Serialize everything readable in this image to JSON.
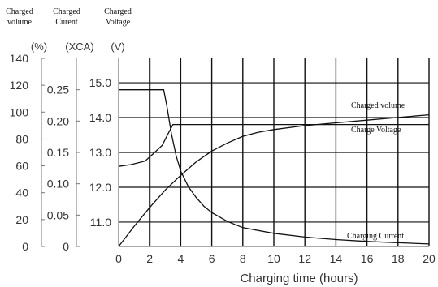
{
  "chart_data": {
    "type": "line",
    "x": [
      0,
      2,
      4,
      6,
      8,
      10,
      12,
      14,
      16,
      18,
      20
    ],
    "xlabel": "Charging time (hours)",
    "xlim": [
      0,
      20
    ],
    "x_ticks": [
      "0",
      "2",
      "4",
      "6",
      "8",
      "10",
      "12",
      "14",
      "16",
      "18",
      "20"
    ],
    "axes": {
      "volume": {
        "header_line1": "Charged",
        "header_line2": "volume",
        "unit": "(%)",
        "ticks": [
          "140",
          "120",
          "100",
          "80",
          "60",
          "40",
          "20",
          "0"
        ],
        "ylim": [
          0,
          140
        ]
      },
      "current": {
        "header_line1": "Charged",
        "header_line2": "Curent",
        "unit": "(XCA)",
        "ticks": [
          "0.25",
          "0.20",
          "0.15",
          "0.10",
          "0.05",
          "0"
        ],
        "ylim": [
          0,
          0.3
        ]
      },
      "voltage": {
        "header_line1": "Charged",
        "header_line2": "Voltage",
        "unit": "(V)",
        "ticks": [
          "15.0",
          "14.0",
          "13.0",
          "12.0",
          "11.0"
        ],
        "ylim": [
          10.3,
          15.7
        ]
      }
    },
    "grid": true,
    "series": [
      {
        "name": "Charged volume",
        "axis": "volume",
        "points": [
          [
            0,
            0
          ],
          [
            1,
            15
          ],
          [
            2,
            29
          ],
          [
            3,
            42
          ],
          [
            4,
            53
          ],
          [
            5,
            63
          ],
          [
            6,
            71
          ],
          [
            7,
            77
          ],
          [
            8,
            82
          ],
          [
            9,
            85
          ],
          [
            10,
            87
          ],
          [
            12,
            90
          ],
          [
            14,
            92
          ],
          [
            16,
            94
          ],
          [
            18,
            96
          ],
          [
            20,
            98
          ]
        ]
      },
      {
        "name": "Charge Voltage",
        "axis": "voltage",
        "points": [
          [
            0,
            12.6
          ],
          [
            0.8,
            12.65
          ],
          [
            1.7,
            12.75
          ],
          [
            2.2,
            12.95
          ],
          [
            2.8,
            13.2
          ],
          [
            3.2,
            13.55
          ],
          [
            3.5,
            13.8
          ],
          [
            20,
            13.8
          ]
        ]
      },
      {
        "name": "Charging Current",
        "axis": "current",
        "points": [
          [
            0,
            0.25
          ],
          [
            2.9,
            0.25
          ],
          [
            3.1,
            0.225
          ],
          [
            3.4,
            0.18
          ],
          [
            3.7,
            0.145
          ],
          [
            4,
            0.12
          ],
          [
            4.5,
            0.095
          ],
          [
            5,
            0.078
          ],
          [
            5.5,
            0.064
          ],
          [
            6,
            0.054
          ],
          [
            7,
            0.04
          ],
          [
            8,
            0.03
          ],
          [
            10,
            0.021
          ],
          [
            12,
            0.015
          ],
          [
            14,
            0.011
          ],
          [
            16,
            0.008
          ],
          [
            18,
            0.006
          ],
          [
            20,
            0.004
          ]
        ]
      }
    ]
  }
}
